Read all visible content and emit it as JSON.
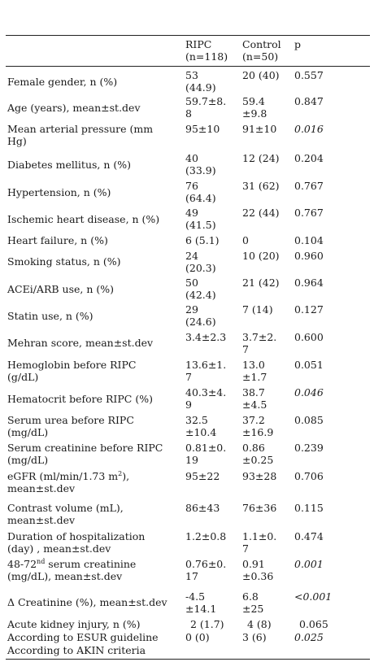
{
  "header": [
    "",
    "RIPC\n(n=118)",
    "Control\n(n=50)",
    "p"
  ],
  "rows": [
    {
      "label": "Female gender, n (%)",
      "ripc": "53\n(44.9)",
      "control": "20 (40)",
      "p": "0.557"
    },
    {
      "label": "Age (years), mean±st.dev",
      "ripc": "59.7±8.\n8",
      "control": "59.4\n±9.8",
      "p": "0.847"
    },
    {
      "label": "Mean arterial pressure (mm\nHg)",
      "ripc": "95±10",
      "control": "91±10",
      "p": "0.016"
    },
    {
      "label": "Diabetes mellitus, n (%)",
      "ripc": "40\n(33.9)",
      "control": "12 (24)",
      "p": "0.204"
    },
    {
      "label": "Hypertension, n (%)",
      "ripc": "76\n(64.4)",
      "control": "31 (62)",
      "p": "0.767"
    },
    {
      "label": "Ischemic heart disease, n (%)",
      "ripc": "49\n(41.5)",
      "control": "22 (44)",
      "p": "0.767"
    },
    {
      "label": "Heart failure, n (%)",
      "ripc": "6 (5.1)",
      "control": "0",
      "p": "0.104"
    },
    {
      "label": "Smoking status, n (%)",
      "ripc": "24\n(20.3)",
      "control": "10 (20)",
      "p": "0.960"
    },
    {
      "label": "ACEi/ARB use, n (%)",
      "ripc": "50\n(42.4)",
      "control": "21 (42)",
      "p": "0.964"
    },
    {
      "label": "Statin use, n (%)",
      "ripc": "29\n(24.6)",
      "control": "7 (14)",
      "p": "0.127"
    },
    {
      "label": "Mehran score, mean±st.dev",
      "ripc": "3.4±2.3",
      "control": "3.7±2.\n7",
      "p": "0.600"
    },
    {
      "label": "Hemoglobin before RIPC\n(g/dL)",
      "ripc": "13.6±1.\n7",
      "control": "13.0\n±1.7",
      "p": "0.051"
    },
    {
      "label": "Hematocrit before RIPC (%)",
      "ripc": "40.3±4.\n9",
      "control": "38.7\n±4.5",
      "p": "0.046"
    },
    {
      "label": "Serum urea before RIPC\n(mg/dL)",
      "ripc": "32.5\n±10.4",
      "control": "37.2\n±16.9",
      "p": "0.085"
    },
    {
      "label": "Serum creatinine before RIPC\n(mg/dL)",
      "ripc": "0.81±0.\n19",
      "control": "0.86\n±0.25",
      "p": "0.239"
    },
    {
      "label_pre": "eGFR (ml/min/1.73 m",
      "label_sup": "2",
      "label_post": "),\nmean±st.dev",
      "ripc": "95±22",
      "control": "93±28",
      "p": "0.706"
    },
    {
      "label": "Contrast volume (mL),\nmean±st.dev",
      "ripc": "86±43",
      "control": "76±36",
      "p": "0.115"
    },
    {
      "label": "Duration of hospitalization\n(day) , mean±st.dev",
      "ripc": "1.2±0.8",
      "control": "1.1±0.\n7",
      "p": "0.474"
    },
    {
      "label_pre": "48-72",
      "label_sup": "nd",
      "label_post": " serum creatinine\n(mg/dL), mean±st.dev",
      "ripc": "0.76±0.\n17",
      "control": "0.91\n±0.36",
      "p": "0.001"
    },
    {
      "label": "Δ Creatinine (%), mean±st.dev",
      "ripc": "-4.5\n±14.1",
      "control": "6.8\n±25",
      "p": "<0.001"
    },
    {
      "label": "Acute kidney injury, n (%)",
      "ripc": "2 (1.7)",
      "control": "4 (8)",
      "p": "0.065"
    },
    {
      "label": "According to ESUR guideline",
      "ripc": "0 (0)",
      "control": "3 (6)",
      "p": "0.025"
    },
    {
      "label": "According to AKIN criteria"
    }
  ]
}
